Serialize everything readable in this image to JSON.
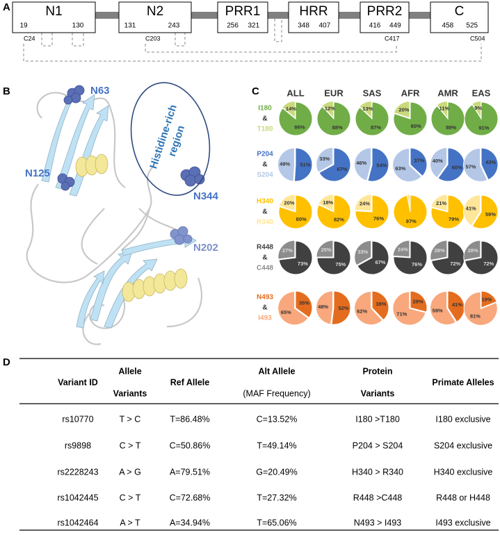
{
  "panel_labels": [
    "A",
    "B",
    "C",
    "D"
  ],
  "domains": [
    {
      "name": "N1",
      "start": "19",
      "end": "130"
    },
    {
      "name": "N2",
      "start": "131",
      "end": "243"
    },
    {
      "name": "PRR1",
      "start": "256",
      "end": "321"
    },
    {
      "name": "HRR",
      "start": "348",
      "end": "407"
    },
    {
      "name": "PRR2",
      "start": "416",
      "end": "449"
    },
    {
      "name": "C",
      "start": "458",
      "end": "525"
    }
  ],
  "disulfides": [
    "C24",
    "C203",
    "C417",
    "C504"
  ],
  "structure": {
    "glycosites": [
      "N63",
      "N125",
      "N344",
      "N202"
    ],
    "region": [
      "Histidine-rich",
      "region"
    ]
  },
  "pies": {
    "columns": [
      "ALL",
      "EUR",
      "SAS",
      "AFR",
      "AMR",
      "EAS"
    ],
    "rows": [
      {
        "alleles": [
          "I180",
          "T180"
        ],
        "joiner": "&",
        "colors": [
          "#70ad47",
          "#c9d97c"
        ],
        "label_color": "#333333",
        "values": [
          [
            86,
            14
          ],
          [
            88,
            12
          ],
          [
            87,
            13
          ],
          [
            80,
            20
          ],
          [
            89,
            11
          ],
          [
            91,
            9
          ]
        ],
        "value_labels": [
          [
            "86%",
            "14%"
          ],
          [
            "88%",
            "12%"
          ],
          [
            "87%",
            "13%"
          ],
          [
            "80%",
            "20%"
          ],
          [
            "89%",
            "11%"
          ],
          [
            "91%",
            "9%"
          ]
        ]
      },
      {
        "alleles": [
          "P204",
          "S204"
        ],
        "joiner": "&",
        "colors": [
          "#4472c4",
          "#b4c7e7"
        ],
        "label_color": "#333333",
        "values": [
          [
            51,
            49
          ],
          [
            67,
            33
          ],
          [
            54,
            46
          ],
          [
            37,
            63
          ],
          [
            60,
            40
          ],
          [
            43,
            57
          ]
        ],
        "value_labels": [
          [
            "51%",
            "49%"
          ],
          [
            "67%",
            "33%"
          ],
          [
            "54%",
            "46%"
          ],
          [
            "37%",
            "63%"
          ],
          [
            "60%",
            "40%"
          ],
          [
            "43%",
            "57%"
          ]
        ]
      },
      {
        "alleles": [
          "H340",
          "R340"
        ],
        "joiner": "&",
        "colors": [
          "#ffc000",
          "#ffe699"
        ],
        "label_color": "#333333",
        "values": [
          [
            80,
            20
          ],
          [
            82,
            18
          ],
          [
            76,
            24
          ],
          [
            97,
            3
          ],
          [
            79,
            21
          ],
          [
            59,
            41
          ]
        ],
        "value_labels": [
          [
            "80%",
            "20%"
          ],
          [
            "82%",
            "18%"
          ],
          [
            "76%",
            "24%"
          ],
          [
            "97%",
            null
          ],
          [
            "79%",
            "21%"
          ],
          [
            "59%",
            "41%"
          ]
        ]
      },
      {
        "alleles": [
          "R448",
          "C448"
        ],
        "joiner": "&",
        "colors": [
          "#404040",
          "#8c8c8c"
        ],
        "label_color": "#dddddd",
        "values": [
          [
            73,
            27
          ],
          [
            75,
            25
          ],
          [
            67,
            33
          ],
          [
            76,
            24
          ],
          [
            72,
            28
          ],
          [
            72,
            28
          ]
        ],
        "value_labels": [
          [
            "73%",
            "27%"
          ],
          [
            "75%",
            "25%"
          ],
          [
            "67%",
            "33%"
          ],
          [
            "76%",
            "24%"
          ],
          [
            "72%",
            "28%"
          ],
          [
            "72%",
            "28%"
          ]
        ]
      },
      {
        "alleles": [
          "N493",
          "I493"
        ],
        "joiner": "&",
        "colors": [
          "#e46c1f",
          "#f8a87c"
        ],
        "label_color": "#333333",
        "values": [
          [
            35,
            65
          ],
          [
            52,
            48
          ],
          [
            38,
            62
          ],
          [
            29,
            71
          ],
          [
            41,
            59
          ],
          [
            19,
            81
          ]
        ],
        "value_labels": [
          [
            "35%",
            "65%"
          ],
          [
            "52%",
            "48%"
          ],
          [
            "38%",
            "62%"
          ],
          [
            "29%",
            "71%"
          ],
          [
            "41%",
            "59%"
          ],
          [
            "19%",
            "81%"
          ]
        ]
      }
    ]
  },
  "table": {
    "header": [
      [
        "Variant ID"
      ],
      [
        "Allele",
        "Variants"
      ],
      [
        "Ref Allele"
      ],
      [
        "Alt Allele",
        "(MAF Frequency)"
      ],
      [
        "Protein",
        "Variants"
      ],
      [
        "Primate Alleles"
      ]
    ],
    "rows": [
      [
        "rs10770",
        "T > C",
        "T=86.48%",
        "C=13.52%",
        "I180 >T180",
        "I180 exclusive"
      ],
      [
        "rs9898",
        "C > T",
        "C=50.86%",
        "T=49.14%",
        "P204 > S204",
        "S204 exclusive"
      ],
      [
        "rs2228243",
        "A > G",
        "A=79.51%",
        "G=20.49%",
        "H340 > R340",
        "H340 exclusive"
      ],
      [
        "rs1042445",
        "C > T",
        "C=72.68%",
        "T=27.32%",
        "R448 >C448",
        "R448 or H448"
      ],
      [
        "rs1042464",
        "A > T",
        "A=34.94%",
        "T=65.06%",
        "N493 > I493",
        "I493 exclusive"
      ]
    ]
  }
}
